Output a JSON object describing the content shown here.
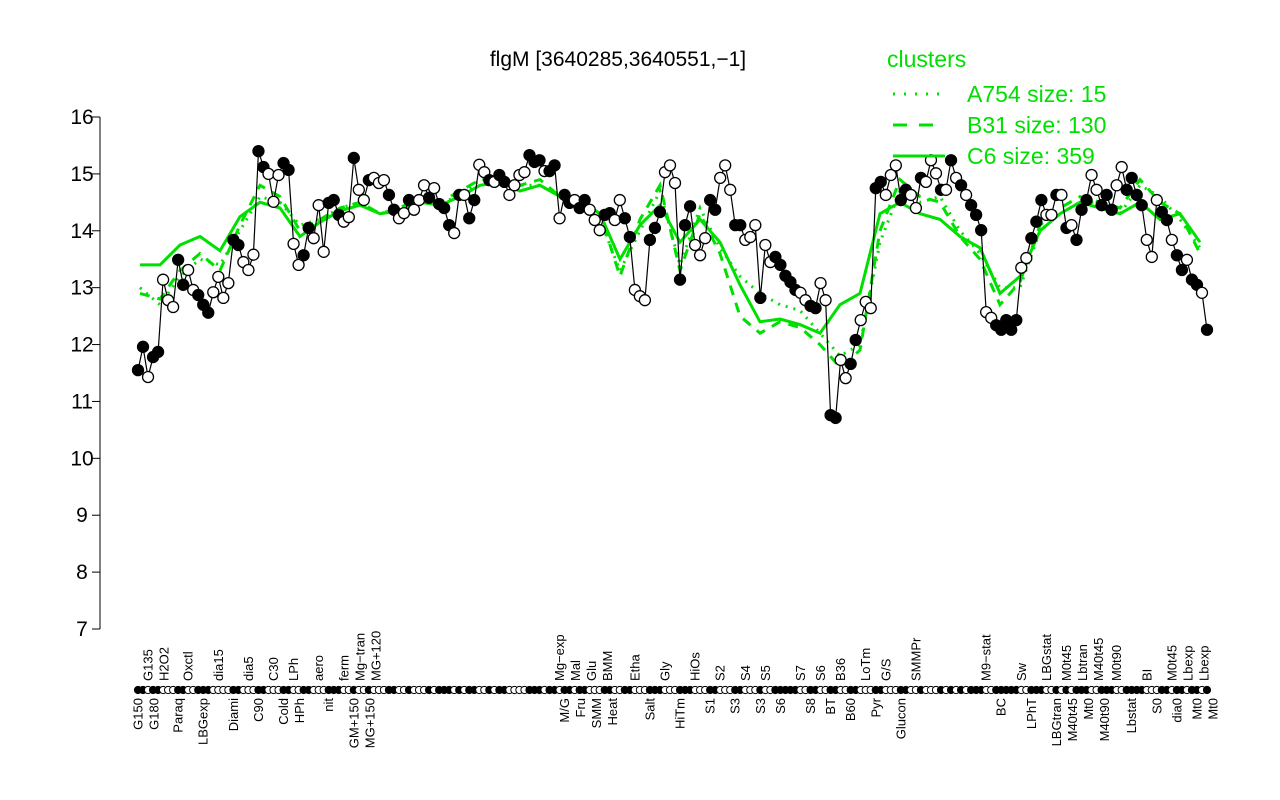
{
  "chart_data": {
    "type": "line",
    "title": "flgM [3640285,3640551,−1]",
    "xlabel": "",
    "ylabel": "",
    "ylim": [
      7,
      16
    ],
    "yticks": [
      "7",
      "8",
      "9",
      "10",
      "11",
      "12",
      "13",
      "14",
      "15",
      "16"
    ],
    "grid": false,
    "legend": {
      "title": "clusters",
      "placement": "top-right",
      "entries": [
        {
          "label": "A754 size: 15",
          "style": "dotted"
        },
        {
          "label": "B31 size: 130",
          "style": "dashed"
        },
        {
          "label": "C6 size: 359",
          "style": "solid"
        }
      ]
    },
    "colors": {
      "points": "#000000",
      "clusters": "#00e000"
    },
    "points_format": [
      "value",
      "filled",
      "label",
      "label_row"
    ],
    "points": [
      [
        11.55,
        1,
        "G150",
        "b"
      ],
      [
        11.96,
        1
      ],
      [
        11.43,
        0,
        "G135",
        "t"
      ],
      [
        11.78,
        1,
        "G180",
        "b"
      ],
      [
        11.87,
        1
      ],
      [
        13.14,
        0,
        "H2O2",
        "t"
      ],
      [
        12.78,
        0
      ],
      [
        12.66,
        0
      ],
      [
        13.49,
        1,
        "Paraq",
        "b"
      ],
      [
        13.05,
        1
      ],
      [
        13.31,
        0,
        "Oxctl",
        "t"
      ],
      [
        12.96,
        0
      ],
      [
        12.87,
        1
      ],
      [
        12.7,
        1,
        "LBGexp",
        "b"
      ],
      [
        12.56,
        1
      ],
      [
        12.92,
        0
      ],
      [
        13.19,
        0,
        "dia15",
        "t"
      ],
      [
        12.82,
        0
      ],
      [
        13.08,
        0
      ],
      [
        13.84,
        1,
        "Diami",
        "b"
      ],
      [
        13.75,
        1
      ],
      [
        13.45,
        0
      ],
      [
        13.31,
        0,
        "dia5",
        "t"
      ],
      [
        13.58,
        0
      ],
      [
        15.4,
        1,
        "C90",
        "b"
      ],
      [
        15.12,
        1
      ],
      [
        15.0,
        0
      ],
      [
        14.51,
        0,
        "C30",
        "t"
      ],
      [
        14.98,
        0
      ],
      [
        15.19,
        1,
        "Cold",
        "b"
      ],
      [
        15.07,
        1
      ],
      [
        13.77,
        0,
        "LPh",
        "t"
      ],
      [
        13.4,
        0,
        "HPh",
        "b"
      ],
      [
        13.57,
        1
      ],
      [
        14.05,
        1
      ],
      [
        13.87,
        0
      ],
      [
        14.45,
        0,
        "aero",
        "t"
      ],
      [
        13.63,
        0
      ],
      [
        14.49,
        1,
        "nit",
        "b"
      ],
      [
        14.54,
        1
      ],
      [
        14.28,
        1
      ],
      [
        14.16,
        0,
        "ferm",
        "t"
      ],
      [
        14.24,
        0
      ],
      [
        15.28,
        1,
        "GM+150",
        "b"
      ],
      [
        14.72,
        0,
        "Mg−tran",
        "t"
      ],
      [
        14.54,
        0
      ],
      [
        14.89,
        1,
        "MG+150",
        "b"
      ],
      [
        14.93,
        0,
        "MG+120",
        "t"
      ],
      [
        14.84,
        0
      ],
      [
        14.89,
        0
      ],
      [
        14.63,
        1
      ],
      [
        14.37,
        1
      ],
      [
        14.22,
        0
      ],
      [
        14.31,
        0
      ],
      [
        14.54,
        1
      ],
      [
        14.37,
        0
      ],
      [
        14.54,
        0
      ],
      [
        14.8,
        0
      ],
      [
        14.58,
        1
      ],
      [
        14.75,
        0
      ],
      [
        14.47,
        1
      ],
      [
        14.4,
        1
      ],
      [
        14.1,
        1
      ],
      [
        13.96,
        0
      ],
      [
        14.63,
        1
      ],
      [
        14.63,
        0
      ],
      [
        14.22,
        1
      ],
      [
        14.54,
        1
      ],
      [
        15.16,
        0
      ],
      [
        15.03,
        0
      ],
      [
        14.89,
        1
      ],
      [
        14.86,
        0
      ],
      [
        14.98,
        1
      ],
      [
        14.86,
        1
      ],
      [
        14.63,
        0
      ],
      [
        14.8,
        0
      ],
      [
        14.98,
        0
      ],
      [
        15.03,
        0
      ],
      [
        15.33,
        1
      ],
      [
        15.21,
        1
      ],
      [
        15.24,
        1
      ],
      [
        15.05,
        0
      ],
      [
        15.05,
        1
      ],
      [
        15.15,
        1
      ],
      [
        14.22,
        0,
        "Mg−exp",
        "t"
      ],
      [
        14.63,
        1,
        "M/G",
        "b"
      ],
      [
        14.49,
        1
      ],
      [
        14.54,
        0,
        "Mal",
        "t"
      ],
      [
        14.4,
        1,
        "Fru",
        "b"
      ],
      [
        14.54,
        1,
        "Glu",
        "t"
      ],
      [
        14.37,
        0,
        "SMM",
        "b"
      ],
      [
        14.19,
        0,
        "BMM",
        "t"
      ],
      [
        14.01,
        0
      ],
      [
        14.28,
        1,
        "Heat",
        "b"
      ],
      [
        14.31,
        1
      ],
      [
        14.19,
        0
      ],
      [
        14.54,
        0
      ],
      [
        14.22,
        1
      ],
      [
        13.89,
        1
      ],
      [
        12.96,
        0,
        "Etha",
        "t"
      ],
      [
        12.85,
        0
      ],
      [
        12.78,
        0
      ],
      [
        13.84,
        1,
        "Salt",
        "b"
      ],
      [
        14.05,
        1
      ],
      [
        14.33,
        1
      ],
      [
        15.03,
        0,
        "Gly",
        "t"
      ],
      [
        15.15,
        0
      ],
      [
        14.84,
        0
      ],
      [
        13.14,
        1,
        "HiTm",
        "b"
      ],
      [
        14.1,
        1
      ],
      [
        14.43,
        1
      ],
      [
        13.75,
        0,
        "HiOs",
        "t"
      ],
      [
        13.57,
        0
      ],
      [
        13.87,
        0
      ],
      [
        14.54,
        1,
        "S1",
        "b"
      ],
      [
        14.37,
        1
      ],
      [
        14.93,
        0,
        "S2",
        "t"
      ],
      [
        15.15,
        0
      ],
      [
        14.72,
        0
      ],
      [
        14.1,
        1,
        "S3",
        "b"
      ],
      [
        14.1,
        1
      ],
      [
        13.84,
        0,
        "S4",
        "t"
      ],
      [
        13.89,
        0
      ],
      [
        14.1,
        0
      ],
      [
        12.82,
        1,
        "S3",
        "b"
      ],
      [
        13.75,
        0,
        "S5",
        "t"
      ],
      [
        13.45,
        0
      ],
      [
        13.54,
        1
      ],
      [
        13.4,
        1,
        "S6",
        "b"
      ],
      [
        13.21,
        1
      ],
      [
        13.1,
        1
      ],
      [
        12.96,
        1
      ],
      [
        12.91,
        0,
        "S7",
        "t"
      ],
      [
        12.78,
        0
      ],
      [
        12.68,
        1,
        "S8",
        "b"
      ],
      [
        12.64,
        1
      ],
      [
        13.08,
        0,
        "S6",
        "t"
      ],
      [
        12.78,
        0
      ],
      [
        10.76,
        1,
        "BT",
        "b"
      ],
      [
        10.71,
        1
      ],
      [
        11.73,
        0,
        "B36",
        "t"
      ],
      [
        11.41,
        0
      ],
      [
        11.66,
        1,
        "B60",
        "b"
      ],
      [
        12.08,
        1
      ],
      [
        12.43,
        0
      ],
      [
        12.75,
        0,
        "LoTm",
        "t"
      ],
      [
        12.64,
        0
      ],
      [
        14.75,
        1,
        "Pyr",
        "b"
      ],
      [
        14.86,
        1
      ],
      [
        14.63,
        0,
        "G/S",
        "t"
      ],
      [
        14.98,
        0
      ],
      [
        15.15,
        0
      ],
      [
        14.54,
        1,
        "Glucon",
        "b"
      ],
      [
        14.72,
        1
      ],
      [
        14.63,
        0
      ],
      [
        14.4,
        0,
        "SMMPr",
        "t"
      ],
      [
        14.93,
        1
      ],
      [
        14.86,
        0
      ],
      [
        15.24,
        0
      ],
      [
        15.01,
        0
      ],
      [
        14.72,
        1
      ],
      [
        14.72,
        0
      ],
      [
        15.24,
        1
      ],
      [
        14.93,
        0
      ],
      [
        14.8,
        1
      ],
      [
        14.63,
        0
      ],
      [
        14.45,
        1
      ],
      [
        14.28,
        1
      ],
      [
        14.01,
        1
      ],
      [
        12.57,
        0,
        "M9−stat",
        "t"
      ],
      [
        12.47,
        0
      ],
      [
        12.34,
        1
      ],
      [
        12.26,
        1,
        "BC",
        "b"
      ],
      [
        12.43,
        1
      ],
      [
        12.26,
        1
      ],
      [
        12.43,
        1
      ],
      [
        13.35,
        0,
        "Sw",
        "t"
      ],
      [
        13.52,
        0
      ],
      [
        13.87,
        1,
        "LPhT",
        "b"
      ],
      [
        14.16,
        1
      ],
      [
        14.54,
        1
      ],
      [
        14.28,
        0,
        "LBGstat",
        "t"
      ],
      [
        14.28,
        0
      ],
      [
        14.63,
        1,
        "LBGtran",
        "b"
      ],
      [
        14.63,
        0
      ],
      [
        14.05,
        1,
        "M0t45",
        "t"
      ],
      [
        14.1,
        0,
        "M40t45",
        "b"
      ],
      [
        13.84,
        1
      ],
      [
        14.37,
        1,
        "Lbtran",
        "t"
      ],
      [
        14.54,
        1,
        "Mt0",
        "b"
      ],
      [
        14.98,
        0,
        "M40t45",
        "t"
      ],
      [
        14.72,
        0,
        "M40t90",
        "b"
      ],
      [
        14.45,
        1
      ],
      [
        14.63,
        1
      ],
      [
        14.37,
        1
      ],
      [
        14.8,
        0,
        "M0t90",
        "t"
      ],
      [
        15.12,
        0
      ],
      [
        14.72,
        1
      ],
      [
        14.93,
        1,
        "Lbstat",
        "b"
      ],
      [
        14.63,
        1
      ],
      [
        14.45,
        1
      ],
      [
        13.84,
        0,
        "BI",
        "t"
      ],
      [
        13.54,
        0
      ],
      [
        14.54,
        0,
        "S0",
        "b"
      ],
      [
        14.33,
        1
      ],
      [
        14.19,
        1
      ],
      [
        13.84,
        0,
        "M0t45",
        "t"
      ],
      [
        13.57,
        1,
        "dia0",
        "b"
      ],
      [
        13.31,
        1
      ],
      [
        13.49,
        0,
        "Lbexp",
        "t"
      ],
      [
        13.14,
        1
      ],
      [
        13.05,
        1,
        "Mt0",
        "b"
      ],
      [
        12.91,
        0,
        "Lbexp",
        "t"
      ],
      [
        12.26,
        1,
        "Mt0",
        "b"
      ]
    ],
    "series": [
      {
        "name": "A754 size: 15",
        "style": "dotted",
        "values": [
          13.0,
          12.7,
          13.2,
          13.5,
          13.4,
          14.0,
          14.6,
          14.5,
          14.1,
          14.2,
          14.4,
          14.5,
          14.3,
          14.4,
          14.6,
          14.5,
          14.6,
          14.9,
          14.9,
          14.8,
          14.8,
          14.6,
          14.5,
          14.2,
          13.3,
          14.0,
          14.7,
          13.4,
          14.4,
          13.7,
          13.2,
          12.9,
          12.7,
          12.6,
          12.2,
          11.8,
          12.0,
          13.8,
          14.7,
          14.5,
          14.6,
          14.0,
          13.6,
          13.0,
          13.0,
          14.0,
          14.3,
          14.5,
          14.5,
          14.3,
          14.8,
          14.6,
          14.2,
          13.7
        ]
      },
      {
        "name": "B31 size: 130",
        "style": "dashed",
        "values": [
          12.9,
          12.8,
          13.3,
          13.6,
          13.3,
          14.1,
          14.8,
          14.6,
          14.0,
          14.2,
          14.4,
          14.5,
          14.3,
          14.4,
          14.6,
          14.5,
          14.7,
          14.9,
          14.95,
          14.8,
          14.9,
          14.6,
          14.5,
          14.3,
          13.2,
          14.2,
          14.8,
          13.3,
          14.3,
          13.6,
          12.5,
          12.2,
          12.4,
          12.3,
          12.0,
          11.6,
          11.9,
          14.0,
          14.9,
          14.6,
          14.5,
          13.9,
          13.5,
          12.7,
          13.1,
          14.1,
          14.4,
          14.6,
          14.5,
          14.4,
          14.9,
          14.5,
          14.3,
          13.6
        ]
      },
      {
        "name": "C6 size: 359",
        "style": "solid",
        "values": [
          13.4,
          13.4,
          13.75,
          13.9,
          13.65,
          14.25,
          14.5,
          14.4,
          13.9,
          14.15,
          14.35,
          14.45,
          14.3,
          14.35,
          14.5,
          14.45,
          14.6,
          14.8,
          14.85,
          14.7,
          14.8,
          14.6,
          14.55,
          14.3,
          13.5,
          14.1,
          14.45,
          13.8,
          14.2,
          13.8,
          13.05,
          12.4,
          12.45,
          12.35,
          12.2,
          12.7,
          12.9,
          14.3,
          14.5,
          14.3,
          14.2,
          13.9,
          13.7,
          12.9,
          13.2,
          14.0,
          14.3,
          14.5,
          14.4,
          14.3,
          14.5,
          14.2,
          14.3,
          13.8
        ]
      }
    ]
  }
}
